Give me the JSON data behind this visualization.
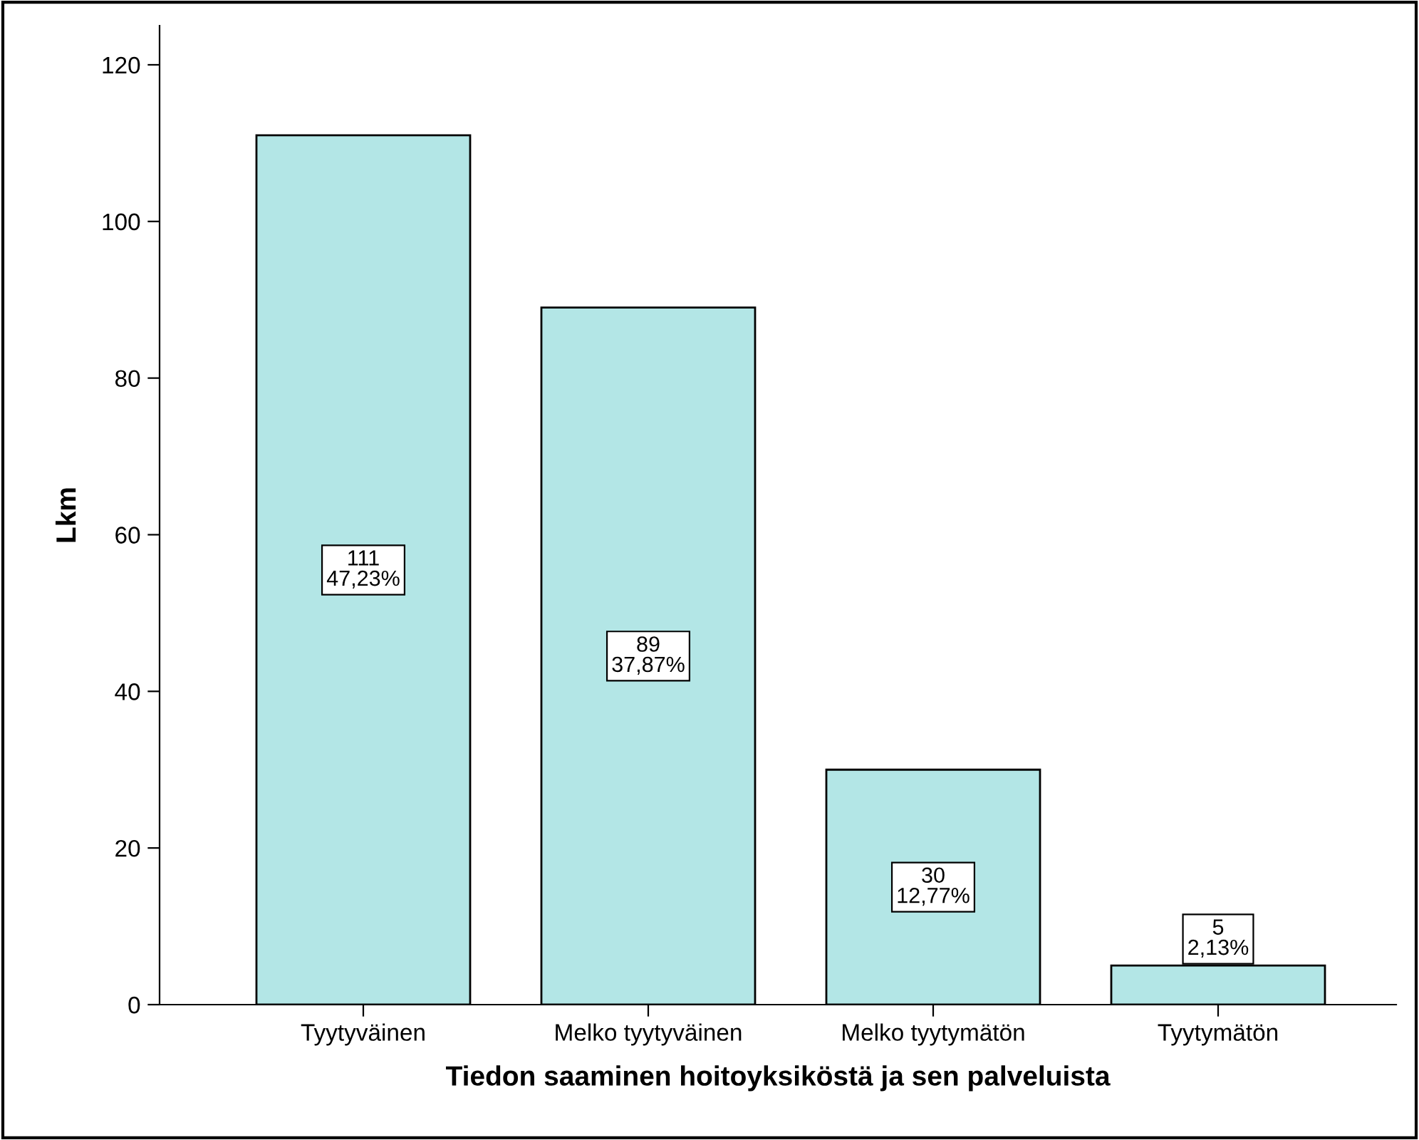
{
  "chart_data": {
    "type": "bar",
    "xlabel": "Tiedon saaminen hoitoyksiköstä ja sen palveluista",
    "ylabel": "Lkm",
    "categories": [
      "Tyytyväinen",
      "Melko tyytyväinen",
      "Melko tyytymätön",
      "Tyytymätön"
    ],
    "values": [
      111,
      89,
      30,
      5
    ],
    "value_labels": [
      "111\n47,23%",
      "89\n37,87%",
      "30\n12,77%",
      "5\n2,13%"
    ],
    "color": "#b3e6e6",
    "ylim": [
      0,
      125
    ],
    "yticks": [
      0,
      20,
      40,
      60,
      80,
      100,
      120
    ],
    "grid": false
  }
}
